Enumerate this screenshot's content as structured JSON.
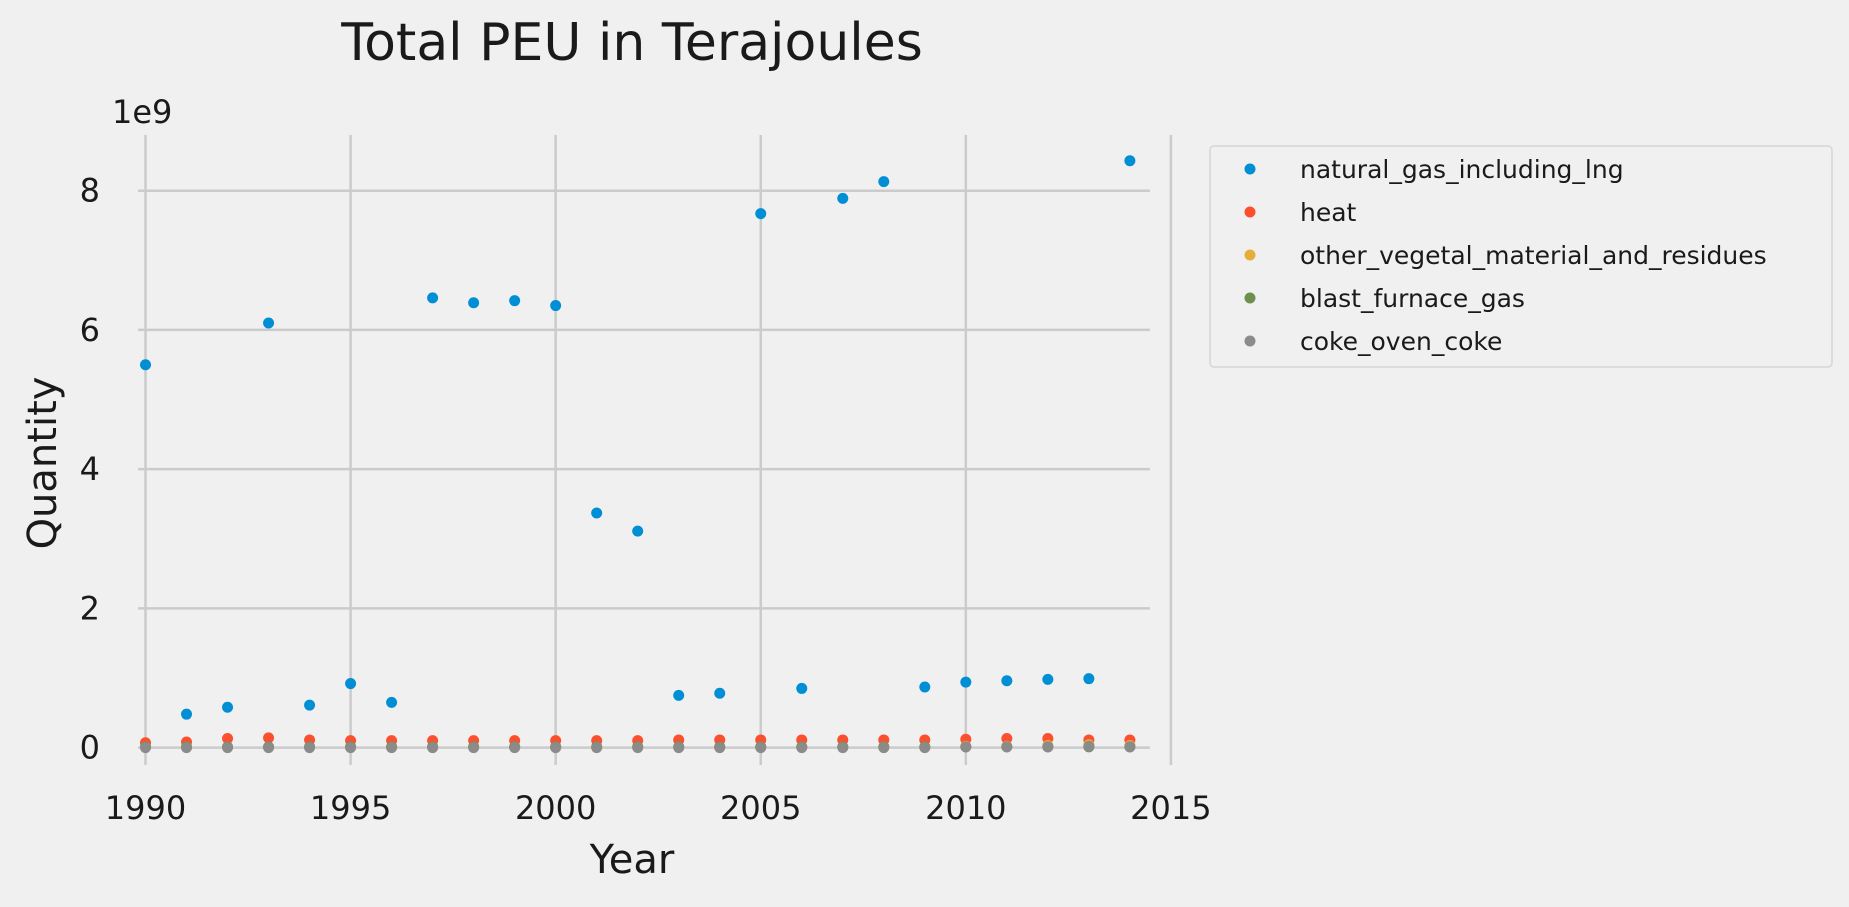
{
  "chart_data": {
    "type": "scatter",
    "title": "Total PEU in Terajoules",
    "xlabel": "Year",
    "ylabel": "Quantity",
    "y_offset_label": "1e9",
    "xlim": [
      1989.5,
      2015.1
    ],
    "ylim": [
      -0.25,
      8.8
    ],
    "y_scale_factor": 1000000000,
    "x_ticks": [
      1990,
      1995,
      2000,
      2005,
      2010,
      2015
    ],
    "y_ticks": [
      0,
      2,
      4,
      6,
      8
    ],
    "grid": true,
    "legend_position": "outside-upper-right",
    "series": [
      {
        "name": "natural_gas_including_lng",
        "color": "#008fd5",
        "points": [
          [
            1990,
            5.5
          ],
          [
            1991,
            0.48
          ],
          [
            1992,
            0.58
          ],
          [
            1993,
            6.1
          ],
          [
            1994,
            0.61
          ],
          [
            1995,
            0.92
          ],
          [
            1996,
            0.65
          ],
          [
            1997,
            6.46
          ],
          [
            1998,
            6.39
          ],
          [
            1999,
            6.42
          ],
          [
            2000,
            6.35
          ],
          [
            2001,
            3.37
          ],
          [
            2002,
            3.11
          ],
          [
            2003,
            0.75
          ],
          [
            2004,
            0.78
          ],
          [
            2005,
            7.67
          ],
          [
            2006,
            0.85
          ],
          [
            2007,
            7.89
          ],
          [
            2008,
            8.13
          ],
          [
            2009,
            0.87
          ],
          [
            2010,
            0.94
          ],
          [
            2011,
            0.96
          ],
          [
            2012,
            0.98
          ],
          [
            2013,
            0.99
          ],
          [
            2014,
            8.43
          ]
        ]
      },
      {
        "name": "heat",
        "color": "#fc4f30",
        "points": [
          [
            1990,
            0.07
          ],
          [
            1991,
            0.08
          ],
          [
            1992,
            0.13
          ],
          [
            1993,
            0.14
          ],
          [
            1994,
            0.11
          ],
          [
            1995,
            0.1
          ],
          [
            1996,
            0.1
          ],
          [
            1997,
            0.1
          ],
          [
            1998,
            0.1
          ],
          [
            1999,
            0.1
          ],
          [
            2000,
            0.1
          ],
          [
            2001,
            0.1
          ],
          [
            2002,
            0.1
          ],
          [
            2003,
            0.11
          ],
          [
            2004,
            0.11
          ],
          [
            2005,
            0.11
          ],
          [
            2006,
            0.11
          ],
          [
            2007,
            0.11
          ],
          [
            2008,
            0.11
          ],
          [
            2009,
            0.11
          ],
          [
            2010,
            0.12
          ],
          [
            2011,
            0.13
          ],
          [
            2012,
            0.13
          ],
          [
            2013,
            0.11
          ],
          [
            2014,
            0.11
          ]
        ]
      },
      {
        "name": "other_vegetal_material_and_residues",
        "color": "#e5ae38",
        "points": [
          [
            1990,
            0.01
          ],
          [
            1991,
            0.01
          ],
          [
            1992,
            0.01
          ],
          [
            1993,
            0.01
          ],
          [
            1994,
            0.01
          ],
          [
            1995,
            0.01
          ],
          [
            1996,
            0.01
          ],
          [
            1997,
            0.01
          ],
          [
            1998,
            0.01
          ],
          [
            1999,
            0.01
          ],
          [
            2000,
            0.01
          ],
          [
            2001,
            0.01
          ],
          [
            2002,
            0.01
          ],
          [
            2003,
            0.01
          ],
          [
            2004,
            0.01
          ],
          [
            2005,
            0.01
          ],
          [
            2006,
            0.01
          ],
          [
            2007,
            0.01
          ],
          [
            2008,
            0.01
          ],
          [
            2009,
            0.01
          ],
          [
            2010,
            0.02
          ],
          [
            2011,
            0.02
          ],
          [
            2012,
            0.03
          ],
          [
            2013,
            0.04
          ],
          [
            2014,
            0.03
          ]
        ]
      },
      {
        "name": "blast_furnace_gas",
        "color": "#6d904f",
        "points": [
          [
            1990,
            0.01
          ],
          [
            1991,
            0.01
          ],
          [
            1992,
            0.01
          ],
          [
            1993,
            0.01
          ],
          [
            1994,
            0.01
          ],
          [
            1995,
            0.01
          ],
          [
            1996,
            0.01
          ],
          [
            1997,
            0.01
          ],
          [
            1998,
            0.01
          ],
          [
            1999,
            0.01
          ],
          [
            2000,
            0.01
          ],
          [
            2001,
            0.01
          ],
          [
            2002,
            0.01
          ],
          [
            2003,
            0.01
          ],
          [
            2004,
            0.01
          ],
          [
            2005,
            0.01
          ],
          [
            2006,
            0.01
          ],
          [
            2007,
            0.01
          ],
          [
            2008,
            0.01
          ],
          [
            2009,
            0.01
          ],
          [
            2010,
            0.01
          ],
          [
            2011,
            0.01
          ],
          [
            2012,
            0.01
          ],
          [
            2013,
            0.01
          ],
          [
            2014,
            0.01
          ]
        ]
      },
      {
        "name": "coke_oven_coke",
        "color": "#8b8b8b",
        "points": [
          [
            1990,
            0.0
          ],
          [
            1991,
            0.0
          ],
          [
            1992,
            0.0
          ],
          [
            1993,
            0.0
          ],
          [
            1994,
            0.0
          ],
          [
            1995,
            0.0
          ],
          [
            1996,
            0.0
          ],
          [
            1997,
            0.0
          ],
          [
            1998,
            0.0
          ],
          [
            1999,
            0.0
          ],
          [
            2000,
            0.0
          ],
          [
            2001,
            0.0
          ],
          [
            2002,
            0.0
          ],
          [
            2003,
            0.0
          ],
          [
            2004,
            0.0
          ],
          [
            2005,
            0.0
          ],
          [
            2006,
            0.0
          ],
          [
            2007,
            0.0
          ],
          [
            2008,
            0.0
          ],
          [
            2009,
            0.0
          ],
          [
            2010,
            0.01
          ],
          [
            2011,
            0.01
          ],
          [
            2012,
            0.01
          ],
          [
            2013,
            0.02
          ],
          [
            2014,
            0.01
          ]
        ]
      }
    ]
  }
}
